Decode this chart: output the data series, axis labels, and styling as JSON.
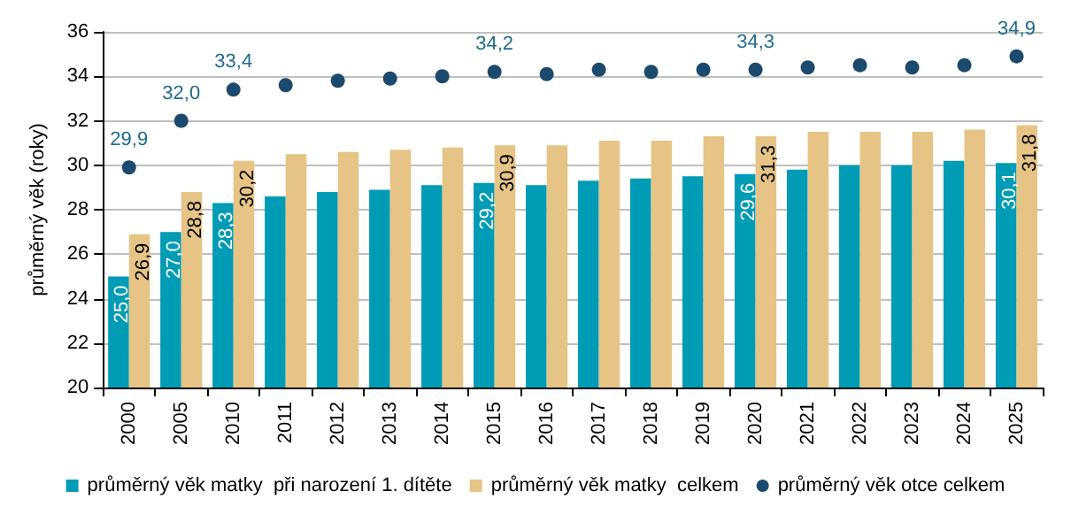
{
  "chart_data": {
    "type": "bar",
    "categories": [
      "2000",
      "2005",
      "2010",
      "2011",
      "2012",
      "2013",
      "2014",
      "2015",
      "2016",
      "2017",
      "2018",
      "2019",
      "2020",
      "2021",
      "2022",
      "2023",
      "2024",
      "2025"
    ],
    "ylabel": "průměrný věk (roky)",
    "ylim": [
      20,
      36
    ],
    "yticks": [
      20,
      22,
      24,
      26,
      28,
      30,
      32,
      34,
      36
    ],
    "grid": "y",
    "legend": "bottom",
    "series": [
      {
        "name": "průměrný věk matky  při narození 1. dítěte",
        "color": "#009bb4",
        "values": [
          25.0,
          27.0,
          28.3,
          28.6,
          28.8,
          28.9,
          29.1,
          29.2,
          29.1,
          29.3,
          29.4,
          29.5,
          29.6,
          29.8,
          30.0,
          30.0,
          30.2,
          30.1
        ],
        "value_labels": [
          "25,0",
          "27,0",
          "28,3",
          null,
          null,
          null,
          null,
          "29,2",
          null,
          null,
          null,
          null,
          "29,6",
          null,
          null,
          null,
          null,
          "30,1"
        ]
      },
      {
        "name": "průměrný věk matky  celkem",
        "color": "#e6c485",
        "values": [
          26.9,
          28.8,
          30.2,
          30.5,
          30.6,
          30.7,
          30.8,
          30.9,
          30.9,
          31.1,
          31.1,
          31.3,
          31.3,
          31.5,
          31.5,
          31.5,
          31.6,
          31.8
        ],
        "value_labels": [
          "26,9",
          "28,8",
          "30,2",
          null,
          null,
          null,
          null,
          "30,9",
          null,
          null,
          null,
          null,
          "31,3",
          null,
          null,
          null,
          null,
          "31,8"
        ]
      },
      {
        "name": "průměrný věk otce celkem",
        "type": "scatter",
        "color": "#1b4a6e",
        "marker": "circle",
        "values": [
          29.9,
          32.0,
          33.4,
          33.6,
          33.8,
          33.9,
          34.0,
          34.2,
          34.1,
          34.3,
          34.2,
          34.3,
          34.3,
          34.4,
          34.5,
          34.4,
          34.5,
          34.9
        ],
        "value_labels": [
          "29,9",
          "32,0",
          "33,4",
          null,
          null,
          null,
          null,
          "34,2",
          null,
          null,
          null,
          null,
          "34,3",
          null,
          null,
          null,
          null,
          "34,9"
        ]
      }
    ]
  }
}
